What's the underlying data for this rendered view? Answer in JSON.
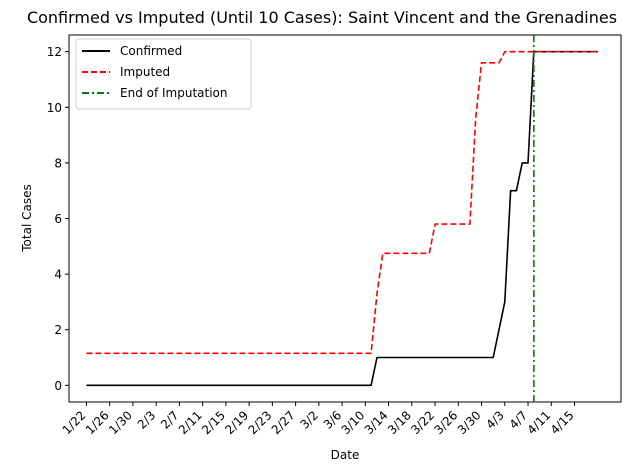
{
  "chart_data": {
    "type": "line",
    "title": "Confirmed vs Imputed (Until 10 Cases): Saint Vincent and the Grenadines",
    "xlabel": "Date",
    "ylabel": "Total Cases",
    "x_start": "2020-01-22",
    "x_end": "2020-04-19",
    "xlim": [
      "2020-01-19",
      "2020-04-23"
    ],
    "ylim": [
      -0.6,
      12.6
    ],
    "x_ticks": [
      "1/22",
      "1/26",
      "1/30",
      "2/3",
      "2/7",
      "2/11",
      "2/15",
      "2/19",
      "2/23",
      "2/27",
      "3/2",
      "3/6",
      "3/10",
      "3/14",
      "3/18",
      "3/22",
      "3/26",
      "3/30",
      "4/3",
      "4/7",
      "4/11",
      "4/15"
    ],
    "y_ticks": [
      0,
      2,
      4,
      6,
      8,
      10,
      12
    ],
    "grid": false,
    "legend_position": "top-left",
    "vertical_line": {
      "name": "End of Imputation",
      "x": "2020-04-08",
      "color": "#008000",
      "style": "dashdot"
    },
    "series": [
      {
        "name": "Confirmed",
        "color": "#000000",
        "style": "solid",
        "x": [
          "2020-01-22",
          "2020-03-11",
          "2020-03-12",
          "2020-04-01",
          "2020-04-02",
          "2020-04-03",
          "2020-04-04",
          "2020-04-05",
          "2020-04-06",
          "2020-04-07",
          "2020-04-08",
          "2020-04-19"
        ],
        "y": [
          0,
          0,
          1,
          1,
          2,
          3,
          7,
          7,
          8,
          8,
          12,
          12
        ]
      },
      {
        "name": "Imputed",
        "color": "#ff0000",
        "style": "dashed",
        "x": [
          "2020-01-22",
          "2020-03-11",
          "2020-03-12",
          "2020-03-13",
          "2020-03-21",
          "2020-03-22",
          "2020-03-28",
          "2020-03-29",
          "2020-03-30",
          "2020-04-02",
          "2020-04-03",
          "2020-04-19"
        ],
        "y": [
          1.15,
          1.15,
          3.3,
          4.75,
          4.75,
          5.8,
          5.8,
          9.6,
          11.6,
          11.6,
          12,
          12
        ]
      }
    ]
  }
}
